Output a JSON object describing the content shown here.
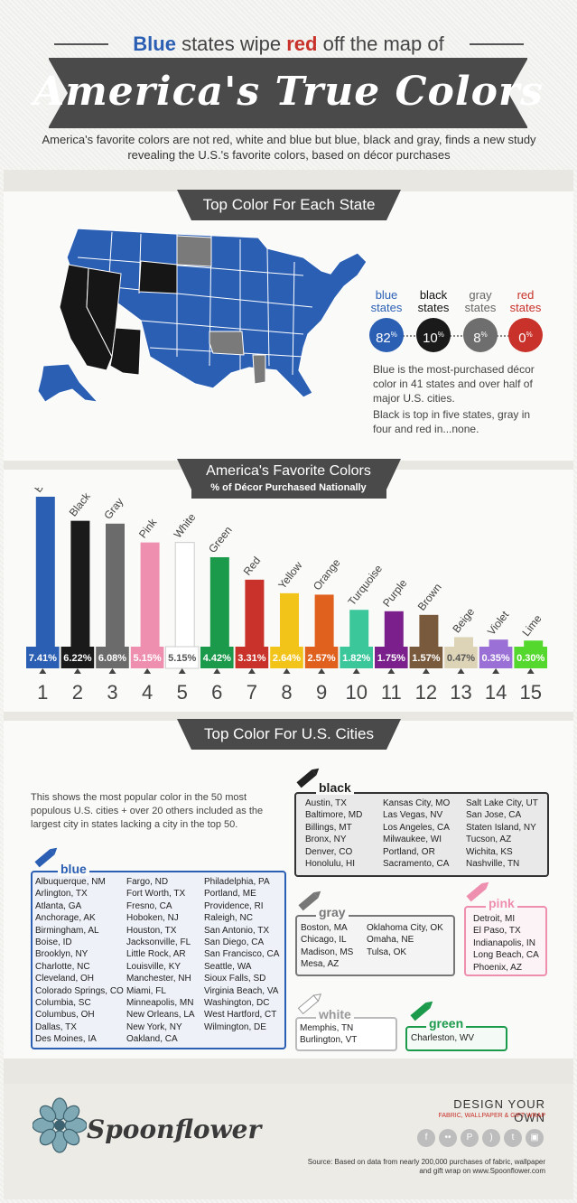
{
  "header": {
    "kicker_blue": "Blue",
    "kicker_mid": " states wipe ",
    "kicker_red": "red",
    "kicker_end": " off the map of",
    "title": "America's True Colors",
    "subtitle": "America's favorite colors are not red, white and blue but blue, black and gray, finds a new study revealing the U.S.'s favorite colors, based on décor purchases"
  },
  "map_section": {
    "heading": "Top Color For Each State",
    "stats": [
      {
        "label1": "blue",
        "label2": "states",
        "value": "82",
        "unit": "%",
        "color": "#2b5fb4"
      },
      {
        "label1": "black",
        "label2": "states",
        "value": "10",
        "unit": "%",
        "color": "#1a1a1a"
      },
      {
        "label1": "gray",
        "label2": "states",
        "value": "8",
        "unit": "%",
        "color": "#6e6e6e"
      },
      {
        "label1": "red",
        "label2": "states",
        "value": "0",
        "unit": "%",
        "color": "#c8322a"
      }
    ],
    "info1": "Blue is the most-purchased décor color in 41 states and over half of major U.S. cities.",
    "info2": "Black is top in five states, gray in four and red in...none.",
    "map_colors": {
      "blue": "#2b5fb4",
      "black": "#161616",
      "gray": "#7a7a7a"
    }
  },
  "chart_section": {
    "heading": "America's Favorite Colors",
    "subheading": "% of Décor Purchased Nationally"
  },
  "chart_data": {
    "type": "bar",
    "title": "America's Favorite Colors",
    "subtitle": "% of Décor Purchased Nationally",
    "ylabel": "% of Décor Purchased Nationally",
    "ylim": [
      0,
      8
    ],
    "categories": [
      "Blue",
      "Black",
      "Gray",
      "Pink",
      "White",
      "Green",
      "Red",
      "Yellow",
      "Orange",
      "Turquoise",
      "Purple",
      "Brown",
      "Beige",
      "Violet",
      "Lime"
    ],
    "values": [
      7.41,
      6.22,
      6.08,
      5.15,
      5.15,
      4.42,
      3.31,
      2.64,
      2.57,
      1.82,
      1.75,
      1.57,
      0.47,
      0.35,
      0.3
    ],
    "value_labels": [
      "7.41",
      "6.22",
      "6.08",
      "5.15",
      "5.15",
      "4.42",
      "3.31",
      "2.64",
      "2.57",
      "1.82",
      "1.75",
      "1.57",
      "0.47",
      "0.35",
      "0.30"
    ],
    "ranks": [
      "1",
      "2",
      "3",
      "4",
      "5",
      "6",
      "7",
      "8",
      "9",
      "10",
      "11",
      "12",
      "13",
      "14",
      "15"
    ],
    "unit": "%",
    "colors": [
      "#2b5fb4",
      "#1a1a1a",
      "#6b6b6b",
      "#ee8fb0",
      "#ffffff",
      "#1a9a4a",
      "#c8322a",
      "#f2c318",
      "#e0601e",
      "#3cc79a",
      "#7a1f8c",
      "#7a5a3c",
      "#ddd3b6",
      "#9a6fd6",
      "#54d82e"
    ]
  },
  "cities_section": {
    "heading": "Top Color For U.S. Cities",
    "intro": "This shows the most popular color in the 50 most populous U.S. cities + over 20 others included as the largest city in states lacking a city in the top 50.",
    "groups": {
      "black": {
        "label": "black",
        "color": "#222222",
        "cols": [
          [
            "Austin, TX",
            "Baltimore, MD",
            "Billings, MT",
            "Bronx, NY",
            "Denver, CO",
            "Honolulu, HI"
          ],
          [
            "Kansas City, MO",
            "Las Vegas, NV",
            "Los Angeles, CA",
            "Milwaukee, WI",
            "Portland, OR",
            "Sacramento, CA"
          ],
          [
            "Salt Lake City, UT",
            "San Jose, CA",
            "Staten Island, NY",
            "Tucson, AZ",
            "Wichita, KS",
            "Nashville, TN"
          ]
        ]
      },
      "blue": {
        "label": "blue",
        "color": "#2b5fb4",
        "cols": [
          [
            "Albuquerque, NM",
            "Arlington, TX",
            "Atlanta, GA",
            "Anchorage, AK",
            "Birmingham, AL",
            "Boise, ID",
            "Brooklyn, NY",
            "Charlotte, NC",
            "Cleveland, OH",
            "Colorado Springs, CO",
            "Columbia, SC",
            "Columbus, OH",
            "Dallas, TX",
            "Des Moines, IA"
          ],
          [
            "Fargo, ND",
            "Fort Worth, TX",
            "Fresno, CA",
            "Hoboken, NJ",
            "Houston, TX",
            "Jacksonville, FL",
            "Little Rock, AR",
            "Louisville, KY",
            "Manchester, NH",
            "Miami, FL",
            "Minneapolis, MN",
            "New Orleans, LA",
            "New York, NY",
            "Oakland, CA"
          ],
          [
            "Philadelphia, PA",
            "Portland, ME",
            "Providence, RI",
            "Raleigh, NC",
            "San Antonio, TX",
            "San Diego, CA",
            "San Francisco, CA",
            "Seattle, WA",
            "Sioux Falls, SD",
            "Virginia Beach, VA",
            "Washington, DC",
            "West Hartford, CT",
            "Wilmington, DE"
          ]
        ]
      },
      "gray": {
        "label": "gray",
        "color": "#777777",
        "cols": [
          [
            "Boston, MA",
            "Chicago, IL",
            "Madison, MS",
            "Mesa, AZ"
          ],
          [
            "Oklahoma City, OK",
            "Omaha, NE",
            "Tulsa, OK"
          ]
        ]
      },
      "pink": {
        "label": "pink",
        "color": "#ee8fb0",
        "cols": [
          [
            "Detroit, MI",
            "El Paso, TX",
            "Indianapolis, IN",
            "Long Beach, CA",
            "Phoenix, AZ"
          ]
        ]
      },
      "white": {
        "label": "white",
        "color": "#bbbbbb",
        "cols": [
          [
            "Memphis, TN",
            "Burlington, VT"
          ]
        ]
      },
      "green": {
        "label": "green",
        "color": "#1a9a4a",
        "cols": [
          [
            "Charleston, WV"
          ]
        ]
      }
    }
  },
  "footer": {
    "brand": "Spoonflower",
    "cta": "DESIGN YOUR OWN",
    "cta_sub": "FABRIC, WALLPAPER & GIFT WRAP",
    "social_icons": [
      "facebook-icon",
      "flickr-icon",
      "pinterest-icon",
      "rss-icon",
      "twitter-icon",
      "instagram-icon"
    ],
    "source": "Source: Based on data from nearly 200,000 purchases of fabric, wallpaper and gift wrap on www.Spoonflower.com"
  }
}
